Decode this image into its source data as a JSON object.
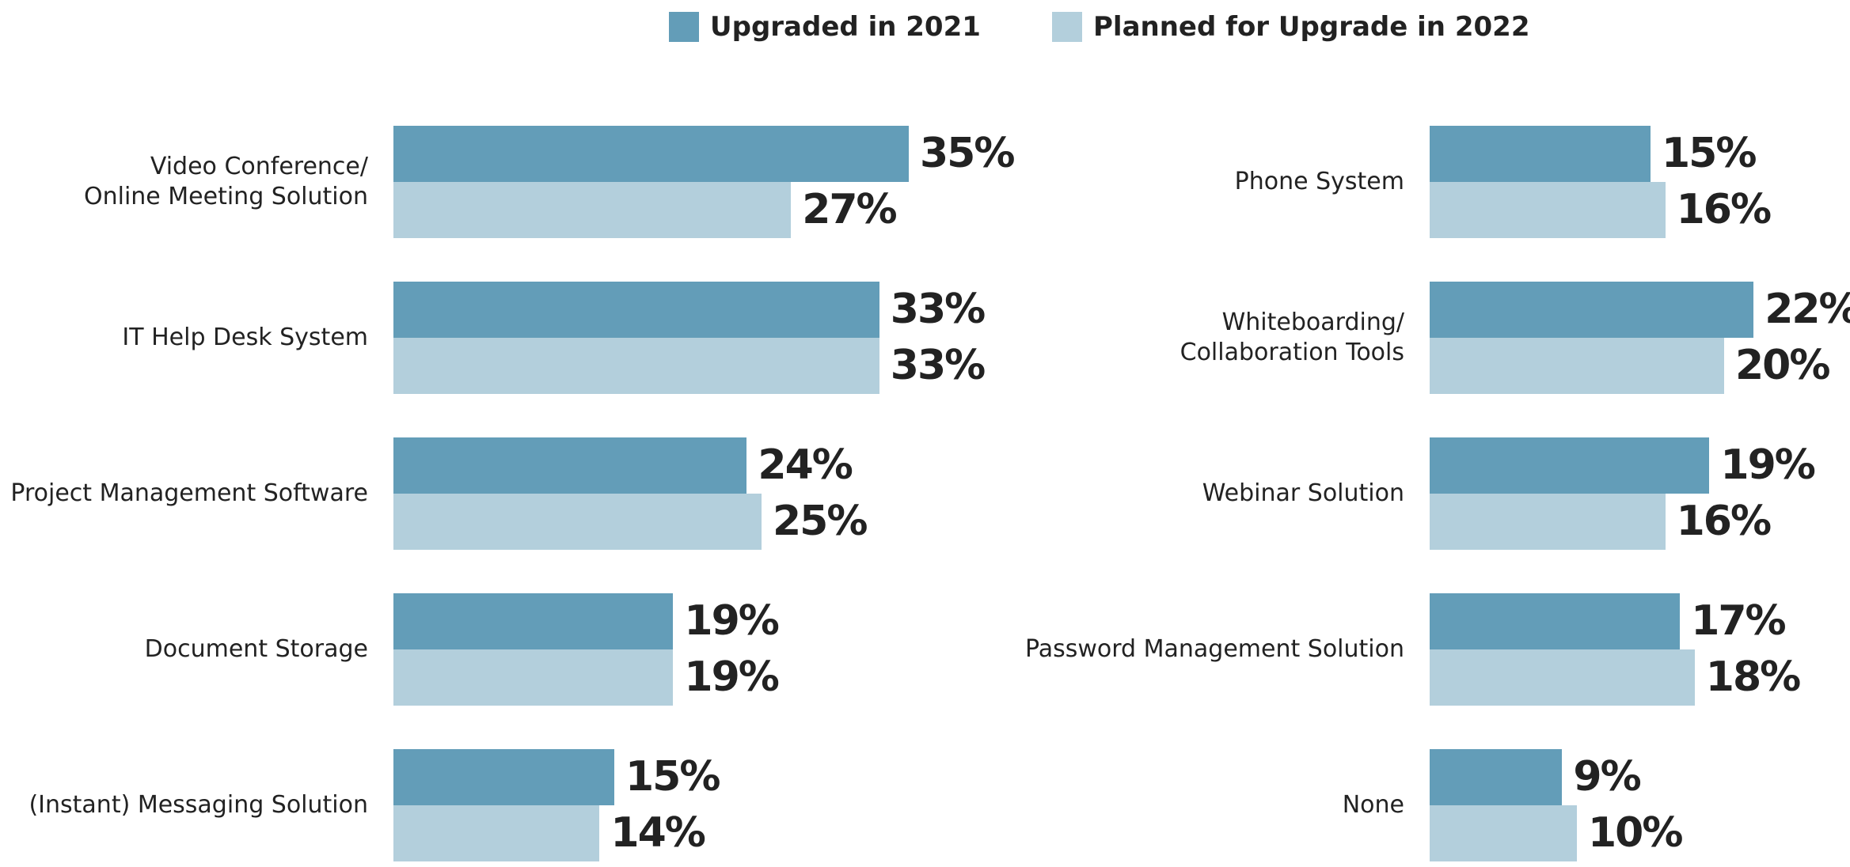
{
  "chart_data": {
    "type": "bar",
    "orientation": "horizontal",
    "categories": [
      "Video Conference/\nOnline Meeting Solution",
      "IT Help Desk System",
      "Project Management Software",
      "Document Storage",
      "(Instant) Messaging Solution",
      "Phone System",
      "Whiteboarding/\nCollaboration Tools",
      "Webinar Solution",
      "Password Management Solution",
      "None"
    ],
    "series": [
      {
        "name": "Upgraded in 2021",
        "color": "#639db8",
        "values": [
          35,
          33,
          24,
          19,
          15,
          15,
          22,
          19,
          17,
          9
        ],
        "value_labels": [
          "35%",
          "33%",
          "24%",
          "19%",
          "15%",
          "15%",
          "22%",
          "19%",
          "17%",
          "9%"
        ]
      },
      {
        "name": "Planned for Upgrade in 2022",
        "color": "#b3cfdc",
        "values": [
          27,
          33,
          25,
          19,
          14,
          16,
          20,
          16,
          18,
          10
        ],
        "value_labels": [
          "27%",
          "33%",
          "25%",
          "19%",
          "14%",
          "16%",
          "20%",
          "16%",
          "18%",
          "10%"
        ]
      }
    ]
  }
}
